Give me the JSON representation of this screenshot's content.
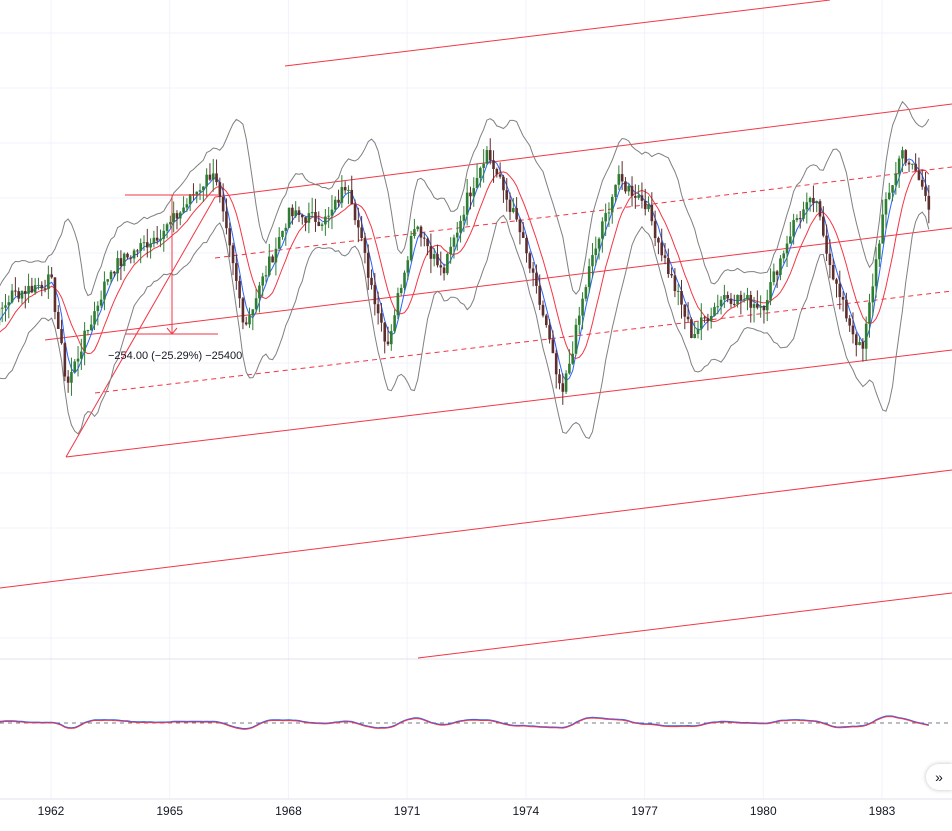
{
  "chart_data": {
    "type": "candlestick",
    "x_axis_ticks": [
      "1962",
      "1965",
      "1968",
      "1971",
      "1974",
      "1977",
      "1980",
      "1983"
    ],
    "measure_label": "−254.00 (−25.29%) −25400",
    "colors": {
      "up": "#26a69a",
      "down": "#ef5350",
      "candle_body": "#2e7d32",
      "fast_ma": "#2962ff",
      "slow_ma": "#f23645",
      "bollinger": "#808080",
      "channel": "#f23645",
      "oscillator_a": "#2962ff",
      "oscillator_b": "#f23645",
      "grid": "#f0f3fa",
      "axis_text": "#131722"
    },
    "price_path": [
      {
        "t": 1960.0,
        "v": 0.18
      },
      {
        "t": 1961.0,
        "v": 0.42
      },
      {
        "t": 1962.0,
        "v": 0.48
      },
      {
        "t": 1962.4,
        "v": 0.06
      },
      {
        "t": 1963.5,
        "v": 0.52
      },
      {
        "t": 1965.0,
        "v": 0.7
      },
      {
        "t": 1966.1,
        "v": 0.92
      },
      {
        "t": 1966.9,
        "v": 0.3
      },
      {
        "t": 1968.0,
        "v": 0.74
      },
      {
        "t": 1969.0,
        "v": 0.72
      },
      {
        "t": 1969.5,
        "v": 0.88
      },
      {
        "t": 1970.0,
        "v": 0.52
      },
      {
        "t": 1970.5,
        "v": 0.22
      },
      {
        "t": 1971.2,
        "v": 0.72
      },
      {
        "t": 1971.9,
        "v": 0.5
      },
      {
        "t": 1972.5,
        "v": 0.8
      },
      {
        "t": 1973.0,
        "v": 1.0
      },
      {
        "t": 1973.8,
        "v": 0.7
      },
      {
        "t": 1974.5,
        "v": 0.3
      },
      {
        "t": 1974.9,
        "v": 0.0
      },
      {
        "t": 1975.6,
        "v": 0.52
      },
      {
        "t": 1976.3,
        "v": 0.88
      },
      {
        "t": 1977.0,
        "v": 0.8
      },
      {
        "t": 1977.6,
        "v": 0.52
      },
      {
        "t": 1978.2,
        "v": 0.26
      },
      {
        "t": 1979.0,
        "v": 0.42
      },
      {
        "t": 1980.0,
        "v": 0.38
      },
      {
        "t": 1980.8,
        "v": 0.72
      },
      {
        "t": 1981.3,
        "v": 0.8
      },
      {
        "t": 1981.9,
        "v": 0.42
      },
      {
        "t": 1982.5,
        "v": 0.18
      },
      {
        "t": 1983.0,
        "v": 0.72
      },
      {
        "t": 1983.5,
        "v": 1.0
      },
      {
        "t": 1984.0,
        "v": 0.86
      },
      {
        "t": 1984.2,
        "v": 0.76
      }
    ],
    "title": "",
    "xlabel": "",
    "ylabel": "",
    "grid": true,
    "legend": "none"
  },
  "controls": {
    "scroll_icon": "double-chevron-right-icon",
    "scroll_glyph": "»"
  }
}
